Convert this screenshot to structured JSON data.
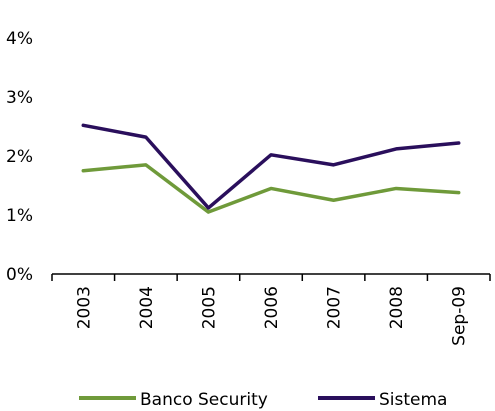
{
  "chart_data": {
    "type": "line",
    "categories": [
      "2003",
      "2004",
      "2005",
      "2006",
      "2007",
      "2008",
      "Sep-09"
    ],
    "series": [
      {
        "name": "Banco Security",
        "color": "#6f9a3a",
        "values": [
          1.75,
          1.85,
          1.05,
          1.45,
          1.25,
          1.45,
          1.38
        ]
      },
      {
        "name": "Sistema",
        "color": "#2a0f5c",
        "values": [
          2.52,
          2.32,
          1.12,
          2.02,
          1.85,
          2.12,
          2.22
        ]
      }
    ],
    "y_ticks": [
      "0%",
      "1%",
      "2%",
      "3%",
      "4%"
    ],
    "ylim": [
      0,
      4
    ],
    "grid": false,
    "legend_position": "bottom"
  }
}
